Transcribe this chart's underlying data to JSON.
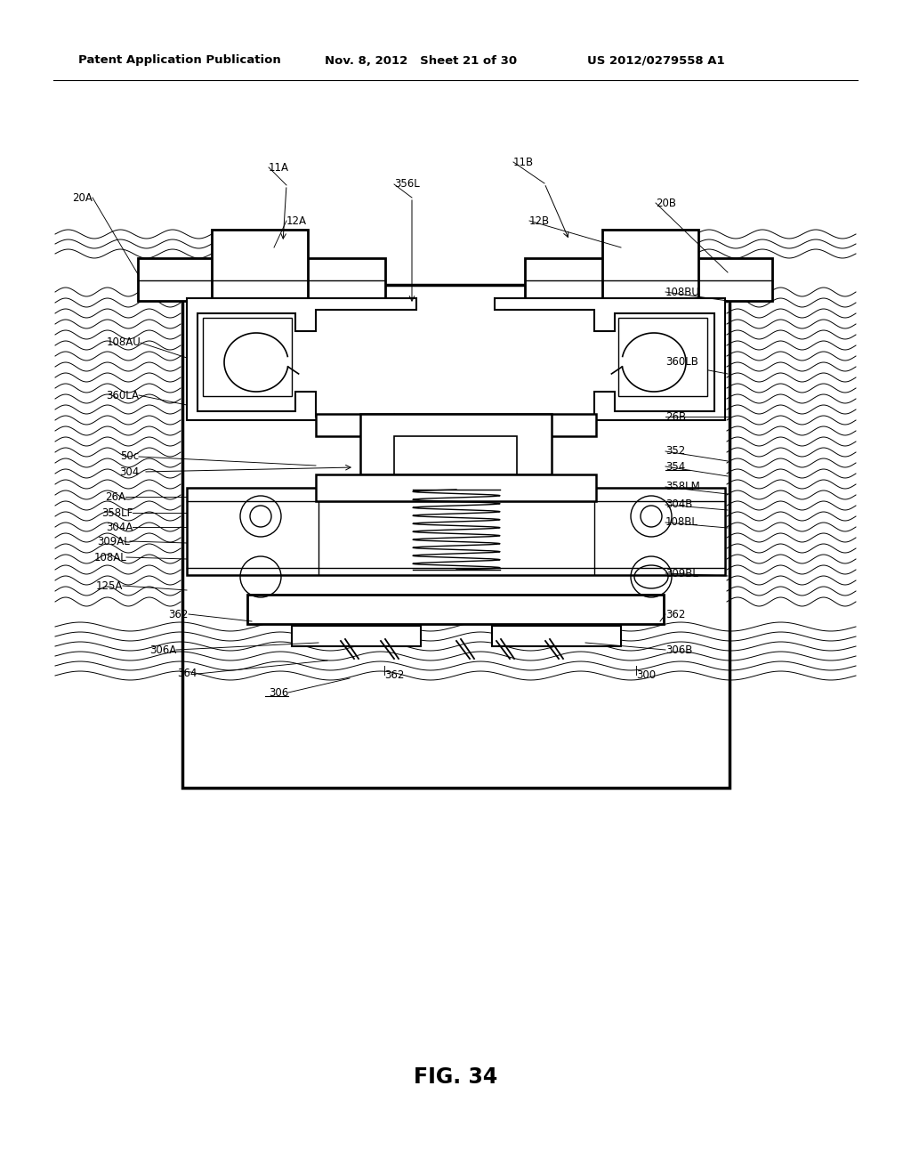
{
  "header_left": "Patent Application Publication",
  "header_mid": "Nov. 8, 2012   Sheet 21 of 30",
  "header_right": "US 2012/0279558 A1",
  "fig_label": "FIG. 34",
  "bg_color": "#ffffff"
}
